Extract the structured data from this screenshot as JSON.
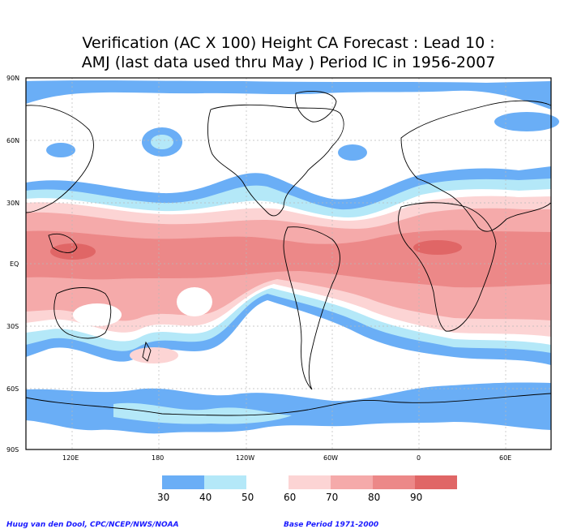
{
  "title_line1": "Verification (AC X 100) Height CA Forecast : Lead 10 :",
  "title_line2": "AMJ (last data used thru May ) Period IC in 1956-2007",
  "lat_labels": [
    "90N",
    "60N",
    "30N",
    "EQ",
    "30S",
    "60S",
    "90S"
  ],
  "lon_labels": [
    "120E",
    "180",
    "120W",
    "60W",
    "0",
    "60E"
  ],
  "legend": {
    "labels": [
      "30",
      "40",
      "50",
      "60",
      "70",
      "80",
      "90"
    ],
    "colors": [
      "#6aaef6",
      "#b4e8f8",
      "#ffffff",
      "#fcd4d4",
      "#f5aaaa",
      "#ec8888",
      "#e06666"
    ]
  },
  "credit_left": "Huug van den Dool, CPC/NCEP/NWS/NOAA",
  "credit_right": "Base Period 1971-2000",
  "colors": {
    "c30": "#6aaef6",
    "c40": "#b4e8f8",
    "c60": "#fcd4d4",
    "c70": "#f5aaaa",
    "c80": "#ec8888",
    "c90": "#e06666"
  }
}
